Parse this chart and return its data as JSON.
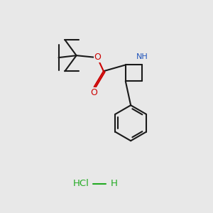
{
  "bg_color": "#e8e8e8",
  "bond_color": "#1a1a1a",
  "N_color": "#2255bb",
  "O_color": "#cc0000",
  "Cl_color": "#22aa22",
  "line_width": 1.5,
  "fig_width": 3.0,
  "fig_height": 3.0,
  "dpi": 100,
  "hcl_text": "HCl",
  "h_text": "H",
  "nh_text": "NH",
  "o_text": "O"
}
